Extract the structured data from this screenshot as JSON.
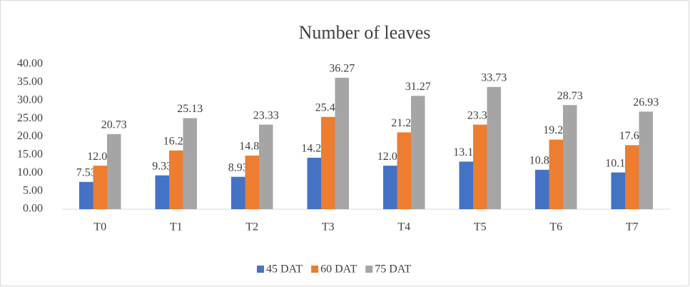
{
  "chart_data": {
    "type": "bar",
    "title": "Number of leaves",
    "categories": [
      "T0",
      "T1",
      "T2",
      "T3",
      "T4",
      "T5",
      "T6",
      "T7"
    ],
    "series": [
      {
        "name": "45 DAT",
        "color": "#4472c4",
        "values": [
          7.53,
          9.33,
          8.93,
          14.2,
          12,
          13.13,
          10.87,
          10.13
        ],
        "value_labels": [
          "7.53",
          "9.33",
          "8.93",
          "14.20",
          "12.00",
          "13.13",
          "10.87",
          "10.13"
        ]
      },
      {
        "name": "60 DAT",
        "color": "#ed7d31",
        "values": [
          12,
          16.2,
          14.8,
          25.47,
          21.2,
          23.33,
          19.2,
          17.67
        ],
        "value_labels": [
          "12.00",
          "16.20",
          "14.80",
          "25.47",
          "21.20",
          "23.33",
          "19.20",
          "17.67"
        ]
      },
      {
        "name": "75 DAT",
        "color": "#a5a5a5",
        "values": [
          20.73,
          25.13,
          23.33,
          36.27,
          31.27,
          33.73,
          28.73,
          26.93
        ],
        "value_labels": [
          "20.73",
          "25.13",
          "23.33",
          "36.27",
          "31.27",
          "33.73",
          "28.73",
          "26.93"
        ]
      }
    ],
    "ylim": [
      0,
      40
    ],
    "yticks": [
      {
        "value": 0,
        "label": "0.00"
      },
      {
        "value": 5,
        "label": "5.00"
      },
      {
        "value": 10,
        "label": "10.00"
      },
      {
        "value": 15,
        "label": "15.00"
      },
      {
        "value": 20,
        "label": "20.00"
      },
      {
        "value": 25,
        "label": "25.00"
      },
      {
        "value": 30,
        "label": "30.00"
      },
      {
        "value": 35,
        "label": "35.00"
      },
      {
        "value": 40,
        "label": "40.00"
      }
    ],
    "grid": false,
    "legend": "bottom"
  }
}
